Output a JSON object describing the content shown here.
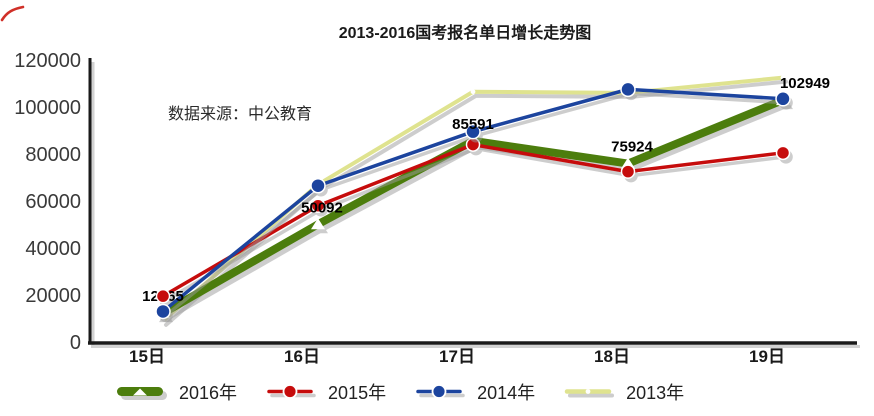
{
  "title": "2013-2016国考报名单日增长走势图",
  "source_note": "数据来源：中公教育",
  "chart_data": {
    "type": "line",
    "title": "2013-2016国考报名单日增长走势图",
    "annotation": "数据来源：中公教育",
    "categories": [
      "15日",
      "16日",
      "17日",
      "18日",
      "19日"
    ],
    "series": [
      {
        "name": "2016年",
        "color": "#4c7d0d",
        "marker": "triangle",
        "thick": true,
        "labeled": true,
        "values": [
          12265,
          50092,
          85591,
          75924,
          102949
        ]
      },
      {
        "name": "2015年",
        "color": "#c60c0c",
        "marker": "dot",
        "thick": false,
        "labeled": false,
        "values": [
          19500,
          58000,
          84000,
          72500,
          80500
        ]
      },
      {
        "name": "2014年",
        "color": "#1c449e",
        "marker": "dot",
        "thick": false,
        "labeled": false,
        "values": [
          13000,
          66500,
          89500,
          107500,
          103500
        ]
      },
      {
        "name": "2013年",
        "color": "#dfe38f",
        "marker": "white-dot",
        "thick": false,
        "labeled": false,
        "values": [
          9000,
          67000,
          106500,
          106000,
          112500
        ]
      }
    ],
    "data_labels": [
      "12265",
      "50092",
      "85591",
      "75924",
      "102949"
    ],
    "xlabel": "",
    "ylabel": "",
    "ylim": [
      0,
      120000
    ],
    "y_ticks": [
      0,
      20000,
      40000,
      60000,
      80000,
      100000,
      120000
    ],
    "grid": false,
    "legend_position": "bottom",
    "note": "values for 2013/2014/2015 series estimated from pixel positions"
  }
}
